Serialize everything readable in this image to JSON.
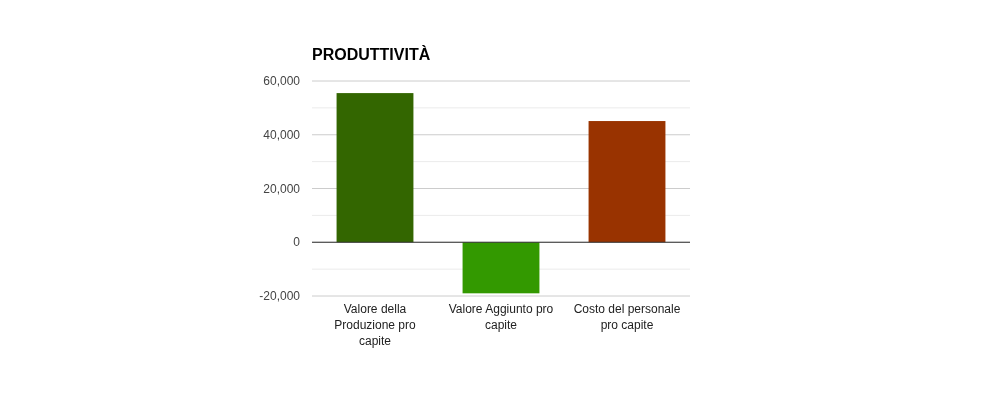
{
  "chart_data": {
    "type": "bar",
    "title": "PRODUTTIVITÀ",
    "categories": [
      "Valore della Produzione pro capite",
      "Valore Aggiunto pro capite",
      "Costo del personale pro capite"
    ],
    "values": [
      55500,
      -19000,
      45100
    ],
    "colors": [
      "#336600",
      "#339900",
      "#993300"
    ],
    "ylim": [
      -20000,
      60000
    ],
    "yticks": [
      {
        "value": -20000,
        "label": "-20,000"
      },
      {
        "value": -10000,
        "label": null
      },
      {
        "value": 0,
        "label": "0"
      },
      {
        "value": 10000,
        "label": null
      },
      {
        "value": 20000,
        "label": "20,000"
      },
      {
        "value": 30000,
        "label": null
      },
      {
        "value": 40000,
        "label": "40,000"
      },
      {
        "value": 50000,
        "label": null
      },
      {
        "value": 60000,
        "label": "60,000"
      }
    ],
    "grid": true
  }
}
